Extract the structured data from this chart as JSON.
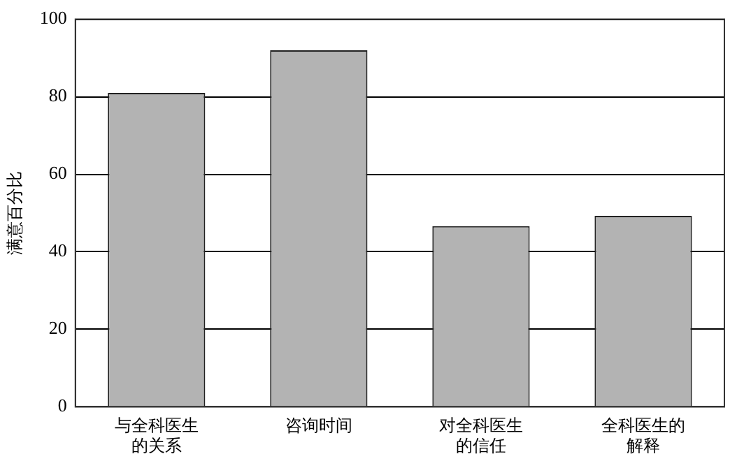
{
  "chart_data": {
    "type": "bar",
    "ylabel": "满意百分比",
    "categories": [
      "与全科医生的关系",
      "咨询时间",
      "对全科医生的信任",
      "全科医生的解释"
    ],
    "values": [
      81,
      92,
      46.6,
      49.3
    ],
    "color": "#b3b3b3",
    "ylim": [
      0,
      100
    ],
    "yticks": [
      0,
      20,
      40,
      60,
      80,
      100
    ],
    "grid": "y",
    "legend": false
  }
}
